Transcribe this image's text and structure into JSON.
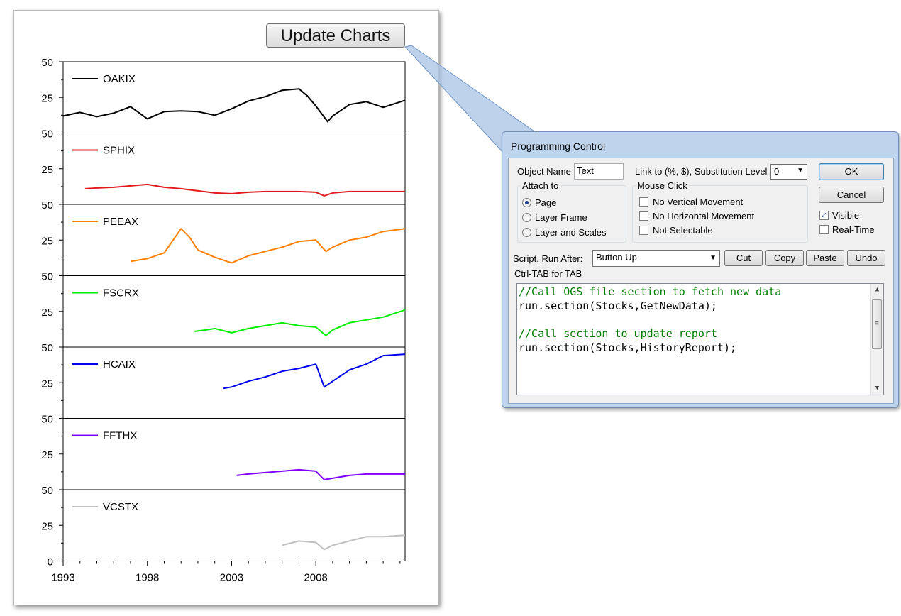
{
  "page": {
    "update_button_label": "Update Charts"
  },
  "chart_data": {
    "type": "line",
    "title": "",
    "xlabel": "",
    "ylabel": "",
    "xlim": [
      1993,
      2013.3
    ],
    "x_ticks": [
      1993,
      1998,
      2003,
      2008
    ],
    "panel_ylim": [
      0,
      50
    ],
    "panel_ticks": [
      "50",
      "25",
      "50",
      "25",
      "50",
      "25",
      "50",
      "25",
      "50",
      "25",
      "50",
      "25",
      "50",
      "25",
      "0"
    ],
    "series": [
      {
        "name": "OAKIX",
        "color": "#000000",
        "x": [
          1993,
          1994,
          1995,
          1996,
          1997,
          1998,
          1999,
          2000,
          2001,
          2002,
          2003,
          2004,
          2005,
          2006,
          2007,
          2007.5,
          2008,
          2008.7,
          2009,
          2010,
          2011,
          2012,
          2013.3
        ],
        "y": [
          12,
          14.5,
          11.5,
          14,
          18.5,
          10,
          15,
          15.5,
          15,
          12.5,
          17,
          22.5,
          25.5,
          30,
          31,
          26,
          19,
          8,
          12,
          20,
          22,
          18,
          23
        ]
      },
      {
        "name": "SPHIX",
        "color": "#e31a1c",
        "x": [
          1994.3,
          1995,
          1996,
          1997,
          1998,
          1999,
          2000,
          2001,
          2002,
          2003,
          2004,
          2005,
          2006,
          2007,
          2008,
          2008.5,
          2009,
          2010,
          2011,
          2012,
          2013.3
        ],
        "y": [
          11,
          11.5,
          12,
          13,
          14,
          12,
          11,
          9.5,
          8,
          7.5,
          8.5,
          9,
          9,
          9,
          8.5,
          6,
          8,
          9,
          9,
          9,
          9
        ]
      },
      {
        "name": "PEEAX",
        "color": "#ff8000",
        "x": [
          1997,
          1998,
          1999,
          2000,
          2000.5,
          2001,
          2002,
          2003,
          2004,
          2005,
          2006,
          2007,
          2008,
          2008.6,
          2009,
          2010,
          2011,
          2012,
          2013.3
        ],
        "y": [
          10,
          12,
          16,
          33,
          27,
          18,
          13,
          9,
          14,
          17,
          20,
          24,
          25,
          17,
          20,
          25,
          27,
          31,
          33
        ]
      },
      {
        "name": "FSCRX",
        "color": "#00ee00",
        "x": [
          2000.8,
          2001.5,
          2002,
          2003,
          2004,
          2005,
          2006,
          2007,
          2008,
          2008.6,
          2009,
          2010,
          2011,
          2012,
          2013.3
        ],
        "y": [
          11,
          12,
          13,
          10,
          13,
          15,
          17,
          15,
          14,
          8,
          12,
          17,
          19,
          21,
          26
        ]
      },
      {
        "name": "HCAIX",
        "color": "#0000ee",
        "x": [
          2002.5,
          2003,
          2004,
          2005,
          2006,
          2007,
          2008,
          2008.5,
          2009,
          2010,
          2011,
          2012,
          2013.3
        ],
        "y": [
          21,
          22,
          26,
          29,
          33,
          35,
          38,
          22,
          26,
          34,
          38,
          44,
          45
        ]
      },
      {
        "name": "FFTHX",
        "color": "#8000ff",
        "x": [
          2003.3,
          2004,
          2005,
          2006,
          2007,
          2008,
          2008.5,
          2009,
          2010,
          2011,
          2012,
          2013.3
        ],
        "y": [
          10,
          11,
          12,
          13,
          14,
          13,
          7,
          8,
          10,
          11,
          11,
          11
        ]
      },
      {
        "name": "VCSTX",
        "color": "#c0c0c0",
        "x": [
          2006,
          2007,
          2008,
          2008.5,
          2009,
          2010,
          2011,
          2012,
          2013.3
        ],
        "y": [
          11,
          14,
          13,
          8,
          11,
          14,
          17,
          17,
          18
        ]
      }
    ]
  },
  "dialog": {
    "title": "Programming Control",
    "object_name_label": "Object Name",
    "object_name_value": "Text",
    "link_label": "Link to (%, $), Substitution Level",
    "substitution_level": "0",
    "attach_to_label": "Attach to",
    "attach_options": [
      "Page",
      "Layer Frame",
      "Layer and Scales"
    ],
    "attach_selected": "Page",
    "mouse_click_label": "Mouse Click",
    "mouse_click_options": [
      "No Vertical Movement",
      "No Horizontal Movement",
      "Not Selectable"
    ],
    "ok_label": "OK",
    "cancel_label": "Cancel",
    "visible_label": "Visible",
    "visible_checked": true,
    "realtime_label": "Real-Time",
    "realtime_checked": false,
    "script_run_after_label": "Script, Run After:",
    "run_after_value": "Button Up",
    "cut_label": "Cut",
    "copy_label": "Copy",
    "paste_label": "Paste",
    "undo_label": "Undo",
    "ctrl_tab_label": "Ctrl-TAB for TAB",
    "code_lines": [
      "//Call OGS file section to fetch new data",
      "run.section(Stocks,GetNewData);",
      "",
      "//Call section to update report",
      "run.section(Stocks,HistoryReport);"
    ],
    "colors": {
      "comment": "#008000",
      "code": "#000000",
      "title_bar": "#bed3ec"
    }
  }
}
